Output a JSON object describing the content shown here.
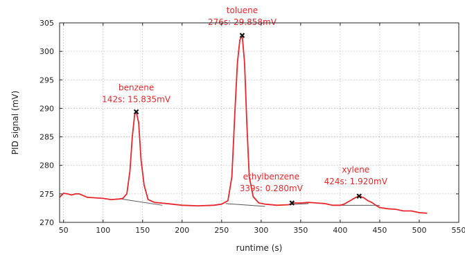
{
  "chart_data": {
    "type": "line",
    "title": "",
    "xlabel": "runtime (s)",
    "ylabel": "PID signal (mV)",
    "xlim": [
      45,
      550
    ],
    "ylim": [
      270,
      305
    ],
    "x_ticks": [
      50,
      100,
      150,
      200,
      250,
      300,
      350,
      400,
      450,
      500,
      550
    ],
    "y_ticks": [
      270,
      275,
      280,
      285,
      290,
      295,
      300,
      305
    ],
    "grid": true,
    "legend": "none",
    "series": [
      {
        "color": "#e8262b",
        "x": [
          45,
          50,
          55,
          60,
          65,
          70,
          80,
          90,
          100,
          110,
          120,
          125,
          130,
          134,
          137,
          140,
          142,
          145,
          148,
          152,
          157,
          165,
          180,
          200,
          220,
          240,
          250,
          258,
          263,
          267,
          270,
          273,
          276,
          279,
          282,
          285,
          290,
          297,
          305,
          320,
          335,
          340,
          350,
          360,
          370,
          380,
          390,
          400,
          405,
          410,
          415,
          420,
          424,
          430,
          435,
          440,
          445,
          450,
          460,
          470,
          480,
          490,
          500,
          510
        ],
        "y": [
          274.4,
          275.1,
          275.0,
          274.8,
          275.0,
          275.0,
          274.4,
          274.3,
          274.2,
          274.0,
          274.1,
          274.2,
          275.0,
          279.0,
          285.0,
          289.0,
          289.4,
          287.5,
          281.0,
          276.5,
          274.0,
          273.5,
          273.3,
          273.0,
          272.9,
          273.0,
          273.2,
          273.8,
          278.0,
          290.0,
          298.0,
          302.0,
          302.8,
          298.0,
          287.0,
          278.0,
          274.5,
          273.4,
          273.2,
          273.0,
          273.1,
          273.4,
          273.4,
          273.5,
          273.4,
          273.3,
          273.0,
          273.0,
          273.2,
          273.6,
          274.0,
          274.4,
          274.6,
          274.3,
          273.8,
          273.5,
          273.0,
          272.6,
          272.4,
          272.3,
          272.0,
          272.0,
          271.7,
          271.6
        ]
      }
    ],
    "baselines": [
      {
        "color": "#555555",
        "x": [
          123,
          175
        ],
        "y": [
          274.1,
          273.0
        ]
      },
      {
        "color": "#555555",
        "x": [
          255,
          305
        ],
        "y": [
          273.3,
          272.8
        ]
      },
      {
        "color": "#555555",
        "x": [
          320,
          360
        ],
        "y": [
          273.0,
          273.3
        ]
      },
      {
        "color": "#555555",
        "x": [
          400,
          450
        ],
        "y": [
          273.0,
          273.0
        ]
      }
    ],
    "peaks": [
      {
        "name": "benzene",
        "label": "142s: 15.835mV",
        "x": 142,
        "y": 289.4
      },
      {
        "name": "toluene",
        "label": "276s: 29.858mV",
        "x": 276,
        "y": 302.8
      },
      {
        "name": "ethylbenzene",
        "label": "339s: 0.280mV",
        "x": 339,
        "y": 273.4
      },
      {
        "name": "xylene",
        "label": "424s: 1.920mV",
        "x": 424,
        "y": 274.6
      }
    ],
    "annotation_color": "#e8262b"
  }
}
